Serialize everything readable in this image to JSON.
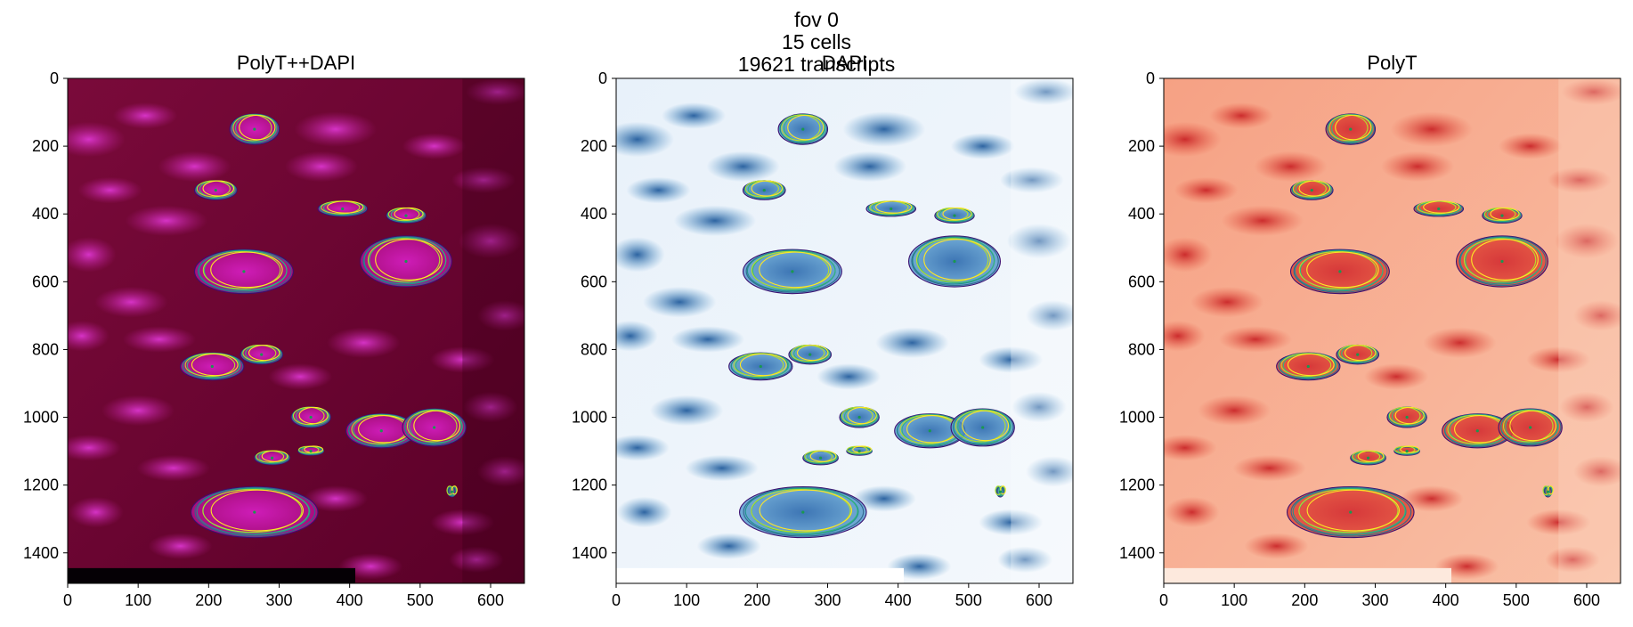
{
  "figure": {
    "suptitle_lines": [
      "fov 0",
      "15 cells",
      "19621 transcripts"
    ]
  },
  "chart_data": [
    {
      "type": "heatmap",
      "title": "PolyT++DAPI",
      "colormap": "PolyT (red) + DAPI (blue) composite",
      "xlim": [
        0,
        648
      ],
      "ylim": [
        1490,
        0
      ],
      "xticks": [
        0,
        100,
        200,
        300,
        400,
        500,
        600
      ],
      "yticks": [
        0,
        200,
        400,
        600,
        800,
        1000,
        1200,
        1400
      ],
      "grid": false
    },
    {
      "type": "heatmap",
      "title": "DAPI",
      "colormap": "Blues",
      "xlim": [
        0,
        648
      ],
      "ylim": [
        1490,
        0
      ],
      "xticks": [
        0,
        100,
        200,
        300,
        400,
        500,
        600
      ],
      "yticks": [
        0,
        200,
        400,
        600,
        800,
        1000,
        1200,
        1400
      ],
      "grid": false
    },
    {
      "type": "heatmap",
      "title": "PolyT",
      "colormap": "Reds",
      "xlim": [
        0,
        648
      ],
      "ylim": [
        1490,
        0
      ],
      "xticks": [
        0,
        100,
        200,
        300,
        400,
        500,
        600
      ],
      "yticks": [
        0,
        200,
        400,
        600,
        800,
        1000,
        1200,
        1400
      ],
      "grid": false
    }
  ],
  "cells": [
    {
      "cx": 265,
      "cy": 150,
      "rx": 35,
      "ry": 45
    },
    {
      "cx": 210,
      "cy": 330,
      "rx": 30,
      "ry": 28
    },
    {
      "cx": 390,
      "cy": 385,
      "rx": 35,
      "ry": 22
    },
    {
      "cx": 480,
      "cy": 405,
      "rx": 28,
      "ry": 22
    },
    {
      "cx": 480,
      "cy": 540,
      "rx": 65,
      "ry": 75
    },
    {
      "cx": 250,
      "cy": 570,
      "rx": 70,
      "ry": 65
    },
    {
      "cx": 205,
      "cy": 850,
      "rx": 45,
      "ry": 40
    },
    {
      "cx": 275,
      "cy": 815,
      "rx": 30,
      "ry": 28
    },
    {
      "cx": 345,
      "cy": 1000,
      "rx": 28,
      "ry": 30
    },
    {
      "cx": 445,
      "cy": 1040,
      "rx": 50,
      "ry": 50
    },
    {
      "cx": 520,
      "cy": 1030,
      "rx": 45,
      "ry": 55
    },
    {
      "cx": 290,
      "cy": 1120,
      "rx": 25,
      "ry": 20
    },
    {
      "cx": 345,
      "cy": 1100,
      "rx": 18,
      "ry": 12
    },
    {
      "cx": 545,
      "cy": 1220,
      "rx": 5,
      "ry": 15
    },
    {
      "cx": 265,
      "cy": 1280,
      "rx": 90,
      "ry": 75
    }
  ],
  "colors": {
    "outline": [
      "#3b0f70",
      "#31688e",
      "#21918c",
      "#35b779",
      "#b5de2b",
      "#fde725"
    ],
    "centroid": "#1a9850"
  }
}
